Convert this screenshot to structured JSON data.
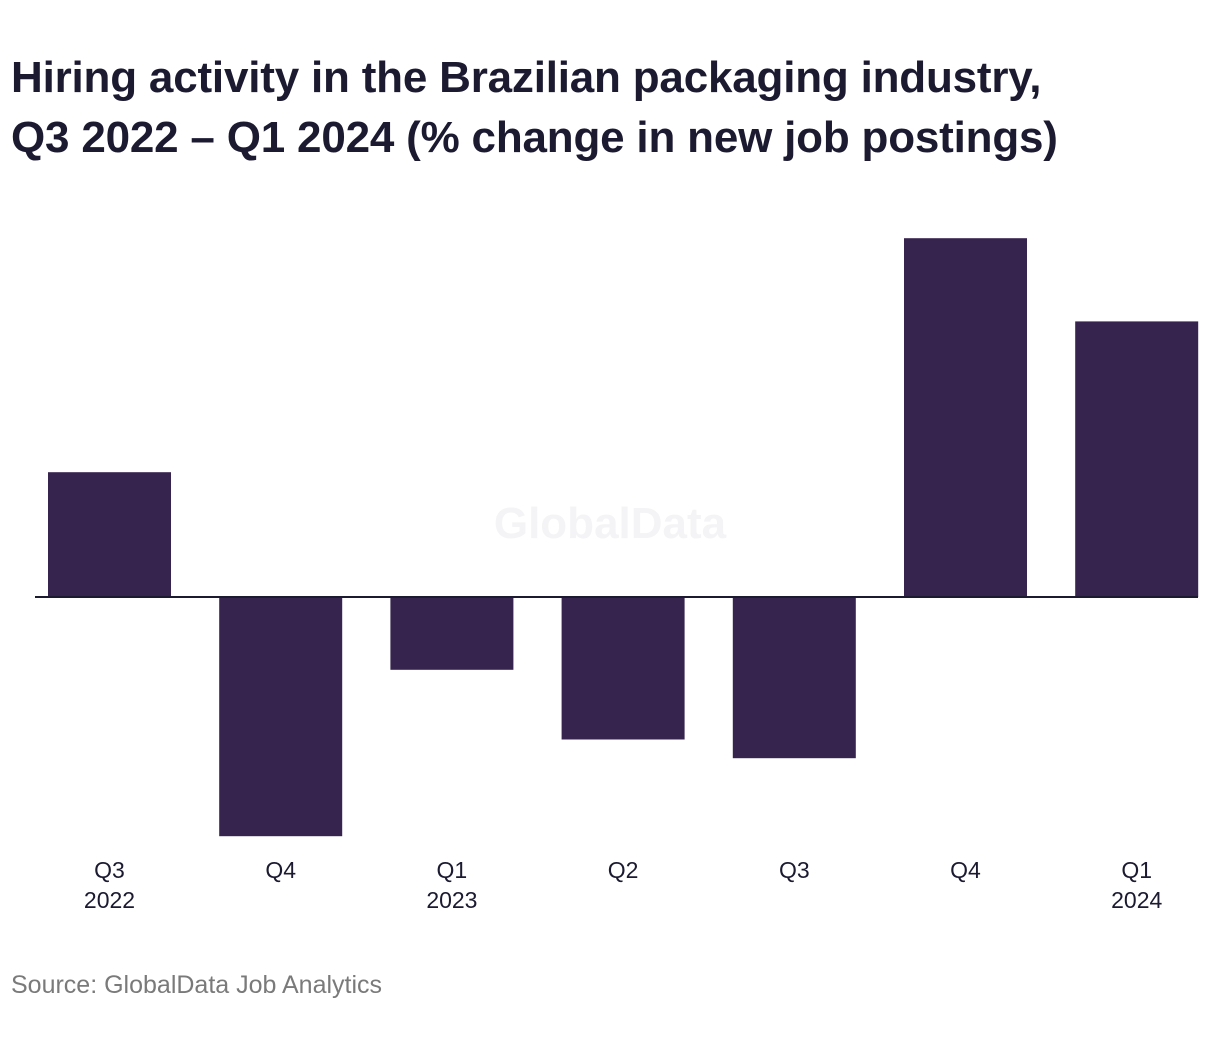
{
  "chart_data": {
    "type": "bar",
    "title_lines": [
      "Hiring activity in the Brazilian packaging industry,",
      "Q3 2022 – Q1 2024 (% change in new job postings)"
    ],
    "categories": [
      {
        "quarter": "Q3",
        "year": "2022"
      },
      {
        "quarter": "Q4",
        "year": ""
      },
      {
        "quarter": "Q1",
        "year": "2023"
      },
      {
        "quarter": "Q2",
        "year": ""
      },
      {
        "quarter": "Q3",
        "year": ""
      },
      {
        "quarter": "Q4",
        "year": ""
      },
      {
        "quarter": "Q1",
        "year": "2024"
      }
    ],
    "values": [
      12,
      -23,
      -7,
      -13.7,
      -15.5,
      34.5,
      26.5
    ],
    "ylim": [
      -25,
      37
    ],
    "grid": false,
    "y_axis_labels": false,
    "bar_color": "#36244f",
    "baseline_color": "#1b1a31",
    "watermark": "GlobalData",
    "source": "Source: GlobalData Job Analytics"
  }
}
